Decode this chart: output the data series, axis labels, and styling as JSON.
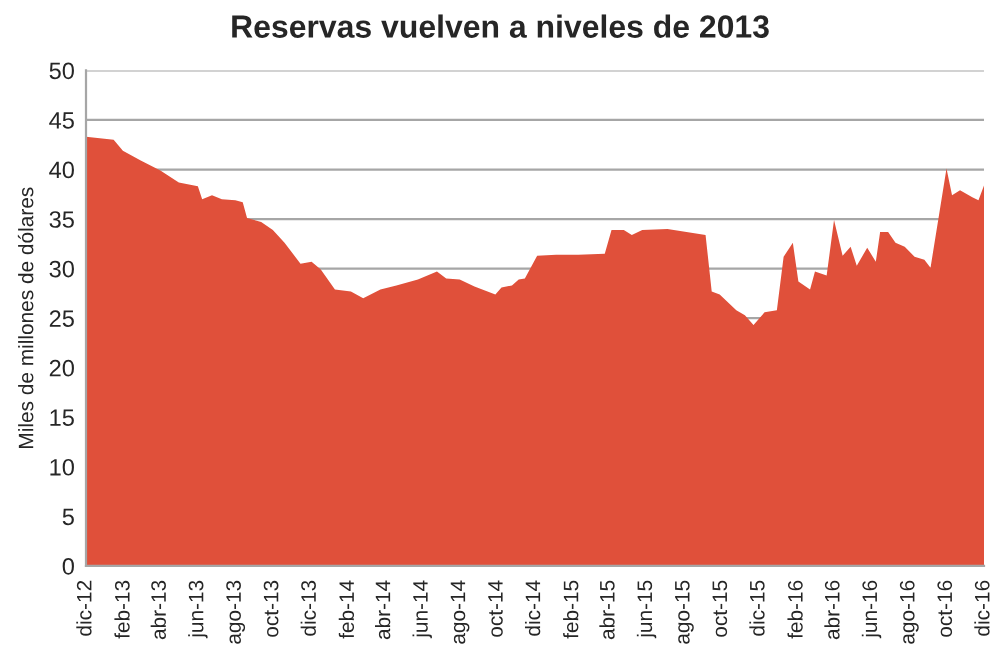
{
  "chart_data": {
    "type": "area",
    "title": "Reservas vuelven a niveles de 2013",
    "ylabel": "Miles de millones de dólares",
    "x": [
      "2012-12-01",
      "2013-01-15",
      "2013-01-30",
      "2013-02-28",
      "2013-04-01",
      "2013-05-01",
      "2013-06-01",
      "2013-06-08",
      "2013-06-24",
      "2013-07-10",
      "2013-08-01",
      "2013-08-13",
      "2013-08-20",
      "2013-09-12",
      "2013-10-01",
      "2013-10-20",
      "2013-11-15",
      "2013-12-03",
      "2013-12-18",
      "2014-01-10",
      "2014-02-05",
      "2014-02-25",
      "2014-03-25",
      "2014-04-20",
      "2014-05-25",
      "2014-06-25",
      "2014-07-10",
      "2014-08-01",
      "2014-08-25",
      "2014-09-28",
      "2014-10-08",
      "2014-10-25",
      "2014-11-05",
      "2014-11-15",
      "2014-12-05",
      "2015-01-05",
      "2015-02-10",
      "2015-03-25",
      "2015-04-05",
      "2015-04-25",
      "2015-05-08",
      "2015-05-25",
      "2015-07-05",
      "2015-09-05",
      "2015-09-15",
      "2015-09-28",
      "2015-10-25",
      "2015-11-08",
      "2015-11-22",
      "2015-12-10",
      "2015-12-30",
      "2016-01-10",
      "2016-01-25",
      "2016-02-03",
      "2016-02-22",
      "2016-03-01",
      "2016-03-20",
      "2016-04-01",
      "2016-04-15",
      "2016-04-28",
      "2016-05-08",
      "2016-05-25",
      "2016-06-08",
      "2016-06-15",
      "2016-06-28",
      "2016-07-10",
      "2016-07-25",
      "2016-08-10",
      "2016-08-26",
      "2016-09-05",
      "2016-10-01",
      "2016-10-10",
      "2016-10-23",
      "2016-11-12",
      "2016-11-22",
      "2016-12-01"
    ],
    "values": [
      43.3,
      43.0,
      41.9,
      40.9,
      39.9,
      38.7,
      38.3,
      37.0,
      37.4,
      37.0,
      36.9,
      36.7,
      35.1,
      34.7,
      33.9,
      32.6,
      30.5,
      30.7,
      29.9,
      27.9,
      27.7,
      27.0,
      27.9,
      28.3,
      28.9,
      29.7,
      29.0,
      28.9,
      28.2,
      27.4,
      28.1,
      28.3,
      28.9,
      29.0,
      31.3,
      31.4,
      31.4,
      31.5,
      33.9,
      33.9,
      33.4,
      33.9,
      34.0,
      33.4,
      27.7,
      27.4,
      25.8,
      25.3,
      24.3,
      25.6,
      25.8,
      31.2,
      32.6,
      28.7,
      27.9,
      29.7,
      29.3,
      34.9,
      31.3,
      32.2,
      30.3,
      32.1,
      30.7,
      33.7,
      33.7,
      32.6,
      32.2,
      31.2,
      30.9,
      30.1,
      40.1,
      37.4,
      37.9,
      37.2,
      36.9,
      38.4
    ],
    "color": "#e0503a",
    "xlim": [
      "2012-12-01",
      "2016-12-01"
    ],
    "xticks": [
      {
        "value": "2012-12-01",
        "label": "dic-12"
      },
      {
        "value": "2013-02-01",
        "label": "feb-13"
      },
      {
        "value": "2013-04-01",
        "label": "abr-13"
      },
      {
        "value": "2013-06-01",
        "label": "jun-13"
      },
      {
        "value": "2013-08-01",
        "label": "ago-13"
      },
      {
        "value": "2013-10-01",
        "label": "oct-13"
      },
      {
        "value": "2013-12-01",
        "label": "dic-13"
      },
      {
        "value": "2014-02-01",
        "label": "feb-14"
      },
      {
        "value": "2014-04-01",
        "label": "abr-14"
      },
      {
        "value": "2014-06-01",
        "label": "jun-14"
      },
      {
        "value": "2014-08-01",
        "label": "ago-14"
      },
      {
        "value": "2014-10-01",
        "label": "oct-14"
      },
      {
        "value": "2014-12-01",
        "label": "dic-14"
      },
      {
        "value": "2015-02-01",
        "label": "feb-15"
      },
      {
        "value": "2015-04-01",
        "label": "abr-15"
      },
      {
        "value": "2015-06-01",
        "label": "jun-15"
      },
      {
        "value": "2015-08-01",
        "label": "ago-15"
      },
      {
        "value": "2015-10-01",
        "label": "oct-15"
      },
      {
        "value": "2015-12-01",
        "label": "dic-15"
      },
      {
        "value": "2016-02-01",
        "label": "feb-16"
      },
      {
        "value": "2016-04-01",
        "label": "abr-16"
      },
      {
        "value": "2016-06-01",
        "label": "jun-16"
      },
      {
        "value": "2016-08-01",
        "label": "ago-16"
      },
      {
        "value": "2016-10-01",
        "label": "oct-16"
      },
      {
        "value": "2016-12-01",
        "label": "dic-16"
      }
    ],
    "ylim": [
      0,
      50
    ],
    "yticks": [
      0,
      5,
      10,
      15,
      20,
      25,
      30,
      35,
      40,
      45,
      50
    ],
    "grid": "y"
  }
}
